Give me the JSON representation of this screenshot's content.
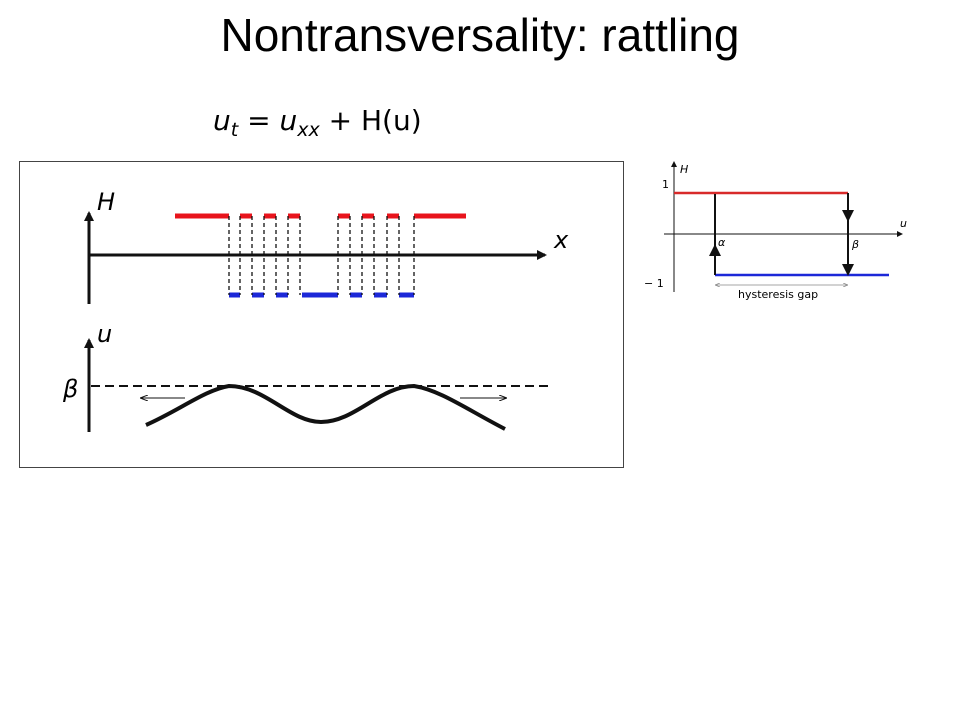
{
  "slide": {
    "title": "Nontransversality: rattling"
  },
  "equation": {
    "lhs_base": "u",
    "lhs_sub": "t",
    "equals": " = ",
    "term1_base": "u",
    "term1_sub": "xx",
    "plus": " + ",
    "term2": "H(u)"
  },
  "left_diagram": {
    "h_axis_label": "H",
    "x_axis_label": "x",
    "u_axis_label": "u",
    "beta_label": "β",
    "colors": {
      "upper": "#e8141c",
      "lower": "#1c28d8",
      "curve": "#111111"
    }
  },
  "hysteresis": {
    "h_axis_label": "H",
    "u_axis_label": "u",
    "tick_1": "1",
    "tick_neg1": "− 1",
    "alpha_label": "α",
    "beta_label": "β",
    "gap_label": "hysteresis gap",
    "colors": {
      "upper": "#d82a2a",
      "lower": "#1c28d8"
    }
  }
}
